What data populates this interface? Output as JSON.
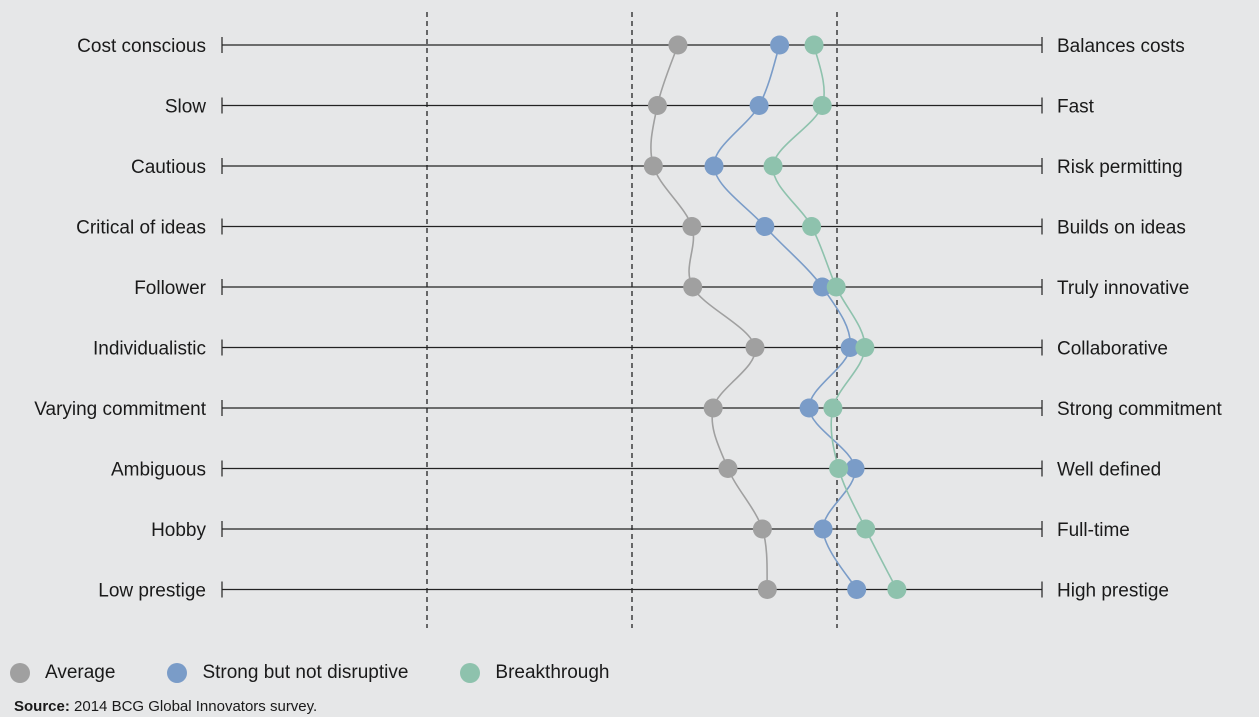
{
  "chart_data": {
    "type": "scatter",
    "xlim": [
      0,
      1
    ],
    "reference_lines": [
      0.25,
      0.5,
      0.75
    ],
    "rows": [
      {
        "left": "Cost conscious",
        "right": "Balances costs"
      },
      {
        "left": "Slow",
        "right": "Fast"
      },
      {
        "left": "Cautious",
        "right": "Risk permitting"
      },
      {
        "left": "Critical of ideas",
        "right": "Builds on ideas"
      },
      {
        "left": "Follower",
        "right": "Truly innovative"
      },
      {
        "left": "Individualistic",
        "right": "Collaborative"
      },
      {
        "left": "Varying commitment",
        "right": "Strong commitment"
      },
      {
        "left": "Ambiguous",
        "right": "Well defined"
      },
      {
        "left": "Hobby",
        "right": "Full-time"
      },
      {
        "left": "Low prestige",
        "right": "High prestige"
      }
    ],
    "series": [
      {
        "name": "Average",
        "color": "#a0a0a0",
        "values": [
          0.556,
          0.531,
          0.526,
          0.573,
          0.574,
          0.65,
          0.599,
          0.617,
          0.659,
          0.665
        ]
      },
      {
        "name": "Strong but not disruptive",
        "color": "#7a9cc8",
        "values": [
          0.68,
          0.655,
          0.6,
          0.662,
          0.732,
          0.766,
          0.716,
          0.772,
          0.733,
          0.774
        ]
      },
      {
        "name": "Breakthrough",
        "color": "#8ec2ad",
        "values": [
          0.722,
          0.732,
          0.672,
          0.719,
          0.749,
          0.784,
          0.745,
          0.752,
          0.785,
          0.823
        ]
      }
    ]
  },
  "legend": [
    {
      "label": "Average",
      "color": "#a0a0a0"
    },
    {
      "label": "Strong but not disruptive",
      "color": "#7a9cc8"
    },
    {
      "label": "Breakthrough",
      "color": "#8ec2ad"
    }
  ],
  "source": {
    "label": "Source:",
    "text": " 2014 BCG Global Innovators survey."
  }
}
